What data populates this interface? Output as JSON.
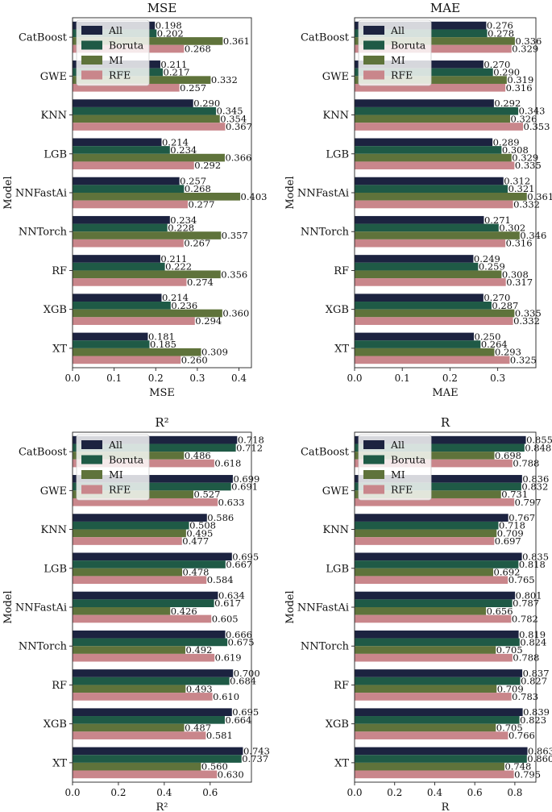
{
  "legend_labels": [
    "All",
    "Boruta",
    "MI",
    "RFE"
  ],
  "colors": {
    "All": "#1c2340",
    "Boruta": "#1f5a46",
    "MI": "#5f733b",
    "RFE": "#c9868b"
  },
  "chart_data": [
    {
      "type": "bar",
      "orientation": "horizontal",
      "title": "MSE",
      "xlabel": "MSE",
      "ylabel": "Model",
      "categories": [
        "CatBoost",
        "GWE",
        "KNN",
        "LGB",
        "NNFastAi",
        "NNTorch",
        "RF",
        "XGB",
        "XT"
      ],
      "xlim": [
        0,
        0.43
      ],
      "xticks": [
        "0.0",
        "0.1",
        "0.2",
        "0.3",
        "0.4"
      ],
      "legend": "top-left",
      "series": [
        {
          "name": "All",
          "values": [
            0.198,
            0.211,
            0.29,
            0.214,
            0.257,
            0.234,
            0.211,
            0.214,
            0.181
          ],
          "labels": [
            "0.198",
            "0.211",
            "0.290",
            "0.214",
            "0.257",
            "0.234",
            "0.211",
            "0.214",
            "0.181"
          ]
        },
        {
          "name": "Boruta",
          "values": [
            0.202,
            0.217,
            0.345,
            0.234,
            0.268,
            0.228,
            0.222,
            0.236,
            0.185
          ],
          "labels": [
            "0.202",
            "0.217",
            "0.345",
            "0.234",
            "0.268",
            "0.228",
            "0.222",
            "0.236",
            "0.185"
          ]
        },
        {
          "name": "MI",
          "values": [
            0.361,
            0.332,
            0.354,
            0.366,
            0.403,
            0.357,
            0.356,
            0.36,
            0.309
          ],
          "labels": [
            "0.361",
            "0.332",
            "0.354",
            "0.366",
            "0.403",
            "0.357",
            "0.356",
            "0.360",
            "0.309"
          ]
        },
        {
          "name": "RFE",
          "values": [
            0.268,
            0.257,
            0.367,
            0.292,
            0.277,
            0.267,
            0.274,
            0.294,
            0.26
          ],
          "labels": [
            "0.268",
            "0.257",
            "0.367",
            "0.292",
            "0.277",
            "0.267",
            "0.274",
            "0.294",
            "0.260"
          ]
        }
      ]
    },
    {
      "type": "bar",
      "orientation": "horizontal",
      "title": "MAE",
      "xlabel": "MAE",
      "ylabel": "Model",
      "categories": [
        "CatBoost",
        "GWE",
        "KNN",
        "LGB",
        "NNFastAi",
        "NNTorch",
        "RF",
        "XGB",
        "XT"
      ],
      "xlim": [
        0,
        0.38
      ],
      "xticks": [
        "0.0",
        "0.1",
        "0.2",
        "0.3"
      ],
      "legend": "top-left",
      "series": [
        {
          "name": "All",
          "values": [
            0.276,
            0.27,
            0.292,
            0.289,
            0.312,
            0.271,
            0.249,
            0.27,
            0.25
          ],
          "labels": [
            "0.276",
            "0.270",
            "0.292",
            "0.289",
            "0.312",
            "0.271",
            "0.249",
            "0.270",
            "0.250"
          ]
        },
        {
          "name": "Boruta",
          "values": [
            0.278,
            0.29,
            0.343,
            0.308,
            0.321,
            0.302,
            0.259,
            0.287,
            0.264
          ],
          "labels": [
            "0.278",
            "0.290",
            "0.343",
            "0.308",
            "0.321",
            "0.302",
            "0.259",
            "0.287",
            "0.264"
          ]
        },
        {
          "name": "MI",
          "values": [
            0.336,
            0.319,
            0.326,
            0.329,
            0.361,
            0.346,
            0.308,
            0.335,
            0.293
          ],
          "labels": [
            "0.336",
            "0.319",
            "0.326",
            "0.329",
            "0.361",
            "0.346",
            "0.308",
            "0.335",
            "0.293"
          ]
        },
        {
          "name": "RFE",
          "values": [
            0.329,
            0.316,
            0.353,
            0.335,
            0.332,
            0.316,
            0.317,
            0.332,
            0.325
          ],
          "labels": [
            "0.329",
            "0.316",
            "0.353",
            "0.335",
            "0.332",
            "0.316",
            "0.317",
            "0.332",
            "0.325"
          ]
        }
      ]
    },
    {
      "type": "bar",
      "orientation": "horizontal",
      "title": "R²",
      "xlabel": "R²",
      "ylabel": "Model",
      "categories": [
        "CatBoost",
        "GWE",
        "KNN",
        "LGB",
        "NNFastAi",
        "NNTorch",
        "RF",
        "XGB",
        "XT"
      ],
      "xlim": [
        0,
        0.78
      ],
      "xticks": [
        "0.0",
        "0.2",
        "0.4",
        "0.6"
      ],
      "legend": "top-left",
      "series": [
        {
          "name": "All",
          "values": [
            0.718,
            0.699,
            0.586,
            0.695,
            0.634,
            0.666,
            0.7,
            0.695,
            0.743
          ],
          "labels": [
            "0.718",
            "0.699",
            "0.586",
            "0.695",
            "0.634",
            "0.666",
            "0.700",
            "0.695",
            "0.743"
          ]
        },
        {
          "name": "Boruta",
          "values": [
            0.712,
            0.691,
            0.508,
            0.667,
            0.617,
            0.675,
            0.684,
            0.664,
            0.737
          ],
          "labels": [
            "0.712",
            "0.691",
            "0.508",
            "0.667",
            "0.617",
            "0.675",
            "0.684",
            "0.664",
            "0.737"
          ]
        },
        {
          "name": "MI",
          "values": [
            0.486,
            0.527,
            0.495,
            0.478,
            0.426,
            0.492,
            0.493,
            0.487,
            0.56
          ],
          "labels": [
            "0.486",
            "0.527",
            "0.495",
            "0.478",
            "0.426",
            "0.492",
            "0.493",
            "0.487",
            "0.560"
          ]
        },
        {
          "name": "RFE",
          "values": [
            0.618,
            0.633,
            0.477,
            0.584,
            0.605,
            0.619,
            0.61,
            0.581,
            0.63
          ],
          "labels": [
            "0.618",
            "0.633",
            "0.477",
            "0.584",
            "0.605",
            "0.619",
            "0.610",
            "0.581",
            "0.630"
          ]
        }
      ]
    },
    {
      "type": "bar",
      "orientation": "horizontal",
      "title": "R",
      "xlabel": "R",
      "ylabel": "Model",
      "categories": [
        "CatBoost",
        "GWE",
        "KNN",
        "LGB",
        "NNFastAi",
        "NNTorch",
        "RF",
        "XGB",
        "XT"
      ],
      "xlim": [
        0,
        0.905
      ],
      "xticks": [
        "0.0",
        "0.2",
        "0.4",
        "0.6",
        "0.8"
      ],
      "legend": "top-left",
      "series": [
        {
          "name": "All",
          "values": [
            0.855,
            0.836,
            0.767,
            0.835,
            0.801,
            0.819,
            0.837,
            0.839,
            0.863
          ],
          "labels": [
            "0.855",
            "0.836",
            "0.767",
            "0.835",
            "0.801",
            "0.819",
            "0.837",
            "0.839",
            "0.863"
          ]
        },
        {
          "name": "Boruta",
          "values": [
            0.848,
            0.832,
            0.718,
            0.818,
            0.787,
            0.824,
            0.827,
            0.823,
            0.86
          ],
          "labels": [
            "0.848",
            "0.832",
            "0.718",
            "0.818",
            "0.787",
            "0.824",
            "0.827",
            "0.823",
            "0.860"
          ]
        },
        {
          "name": "MI",
          "values": [
            0.698,
            0.731,
            0.709,
            0.692,
            0.656,
            0.705,
            0.709,
            0.705,
            0.748
          ],
          "labels": [
            "0.698",
            "0.731",
            "0.709",
            "0.692",
            "0.656",
            "0.705",
            "0.709",
            "0.705",
            "0.748"
          ]
        },
        {
          "name": "RFE",
          "values": [
            0.788,
            0.797,
            0.697,
            0.765,
            0.782,
            0.788,
            0.783,
            0.766,
            0.795
          ],
          "labels": [
            "0.788",
            "0.797",
            "0.697",
            "0.765",
            "0.782",
            "0.788",
            "0.783",
            "0.766",
            "0.795"
          ]
        }
      ]
    }
  ]
}
